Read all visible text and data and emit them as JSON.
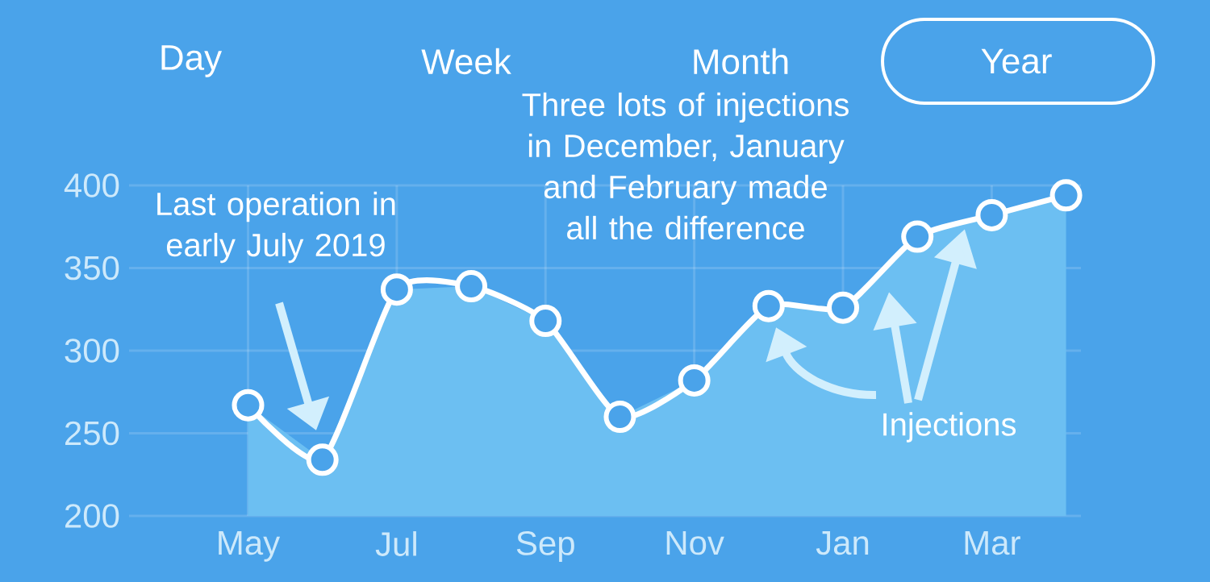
{
  "chart_data": {
    "type": "area",
    "categories": [
      "May",
      null,
      "Jul",
      null,
      "Sep",
      null,
      "Nov",
      null,
      "Jan",
      null,
      "Mar",
      null
    ],
    "series": [
      {
        "color": "#6cbff2",
        "values": [
          267,
          234,
          337,
          339,
          318,
          260,
          282,
          327,
          326,
          369,
          382,
          394
        ]
      }
    ],
    "ylim": [
      200,
      400
    ],
    "yticks": [
      200,
      250,
      300,
      350,
      400
    ],
    "grid": true,
    "marker": "circle",
    "line_style": "solid",
    "annotations": [
      "Day",
      "Week",
      "Month",
      "Year",
      "Three lots of injections in December, January and February made all the difference",
      "Last operation in early July 2019",
      "Injections"
    ]
  }
}
